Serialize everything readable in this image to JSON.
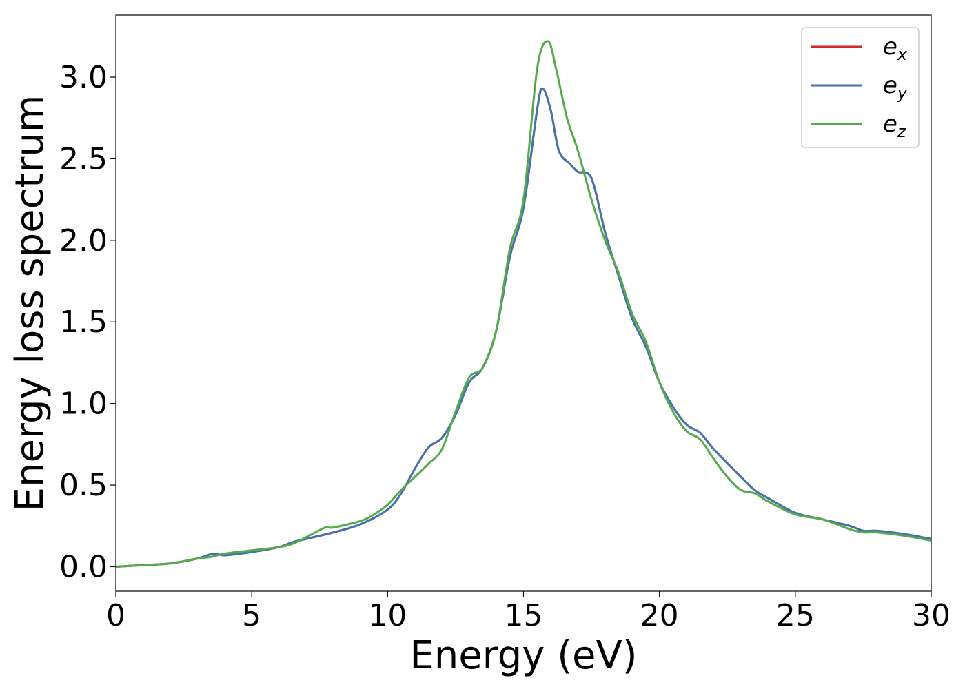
{
  "chart_data": {
    "type": "line",
    "title": "",
    "xlabel": "Energy (eV)",
    "ylabel": "Energy loss spectrum",
    "xlim": [
      0,
      30
    ],
    "ylim": [
      -0.15,
      3.38
    ],
    "xticks": [
      0,
      5,
      10,
      15,
      20,
      25,
      30
    ],
    "xtick_labels": [
      "0",
      "5",
      "10",
      "15",
      "20",
      "25",
      "30"
    ],
    "yticks": [
      0.0,
      0.5,
      1.0,
      1.5,
      2.0,
      2.5,
      3.0
    ],
    "ytick_labels": [
      "0.0",
      "0.5",
      "1.0",
      "1.5",
      "2.0",
      "2.5",
      "3.0"
    ],
    "grid": false,
    "legend": {
      "position": "top-right"
    },
    "series": [
      {
        "name_base": "e",
        "name_sub": "x",
        "color": "#d62728",
        "x": [
          0,
          1,
          2,
          3,
          3.6,
          4,
          5,
          6,
          6.5,
          7,
          8,
          9,
          10,
          10.5,
          11,
          11.5,
          12,
          12.5,
          13,
          13.5,
          14,
          14.5,
          15,
          15.5,
          15.7,
          16,
          16.3,
          16.7,
          17,
          17.5,
          18,
          18.5,
          19,
          19.5,
          20,
          20.5,
          21,
          21.5,
          22,
          23,
          23.5,
          24,
          25,
          26,
          27,
          27.5,
          28,
          29,
          30
        ],
        "y": [
          0.0,
          0.01,
          0.02,
          0.05,
          0.08,
          0.07,
          0.09,
          0.12,
          0.15,
          0.17,
          0.21,
          0.26,
          0.35,
          0.45,
          0.6,
          0.73,
          0.79,
          0.93,
          1.13,
          1.22,
          1.45,
          1.9,
          2.2,
          2.8,
          2.93,
          2.8,
          2.55,
          2.47,
          2.42,
          2.38,
          2.05,
          1.78,
          1.52,
          1.35,
          1.13,
          0.98,
          0.87,
          0.82,
          0.72,
          0.55,
          0.47,
          0.42,
          0.33,
          0.29,
          0.25,
          0.22,
          0.22,
          0.2,
          0.17
        ]
      },
      {
        "name_base": "e",
        "name_sub": "y",
        "color": "#3f74ad",
        "x": [
          0,
          1,
          2,
          3,
          3.6,
          4,
          5,
          6,
          6.5,
          7,
          8,
          9,
          10,
          10.5,
          11,
          11.5,
          12,
          12.5,
          13,
          13.5,
          14,
          14.5,
          15,
          15.5,
          15.7,
          16,
          16.3,
          16.7,
          17,
          17.5,
          18,
          18.5,
          19,
          19.5,
          20,
          20.5,
          21,
          21.5,
          22,
          23,
          23.5,
          24,
          25,
          26,
          27,
          27.5,
          28,
          29,
          30
        ],
        "y": [
          0.0,
          0.01,
          0.02,
          0.05,
          0.08,
          0.07,
          0.09,
          0.12,
          0.15,
          0.17,
          0.21,
          0.26,
          0.35,
          0.45,
          0.6,
          0.73,
          0.79,
          0.93,
          1.13,
          1.22,
          1.45,
          1.9,
          2.2,
          2.8,
          2.93,
          2.8,
          2.55,
          2.47,
          2.42,
          2.38,
          2.05,
          1.78,
          1.52,
          1.35,
          1.13,
          0.98,
          0.87,
          0.82,
          0.72,
          0.55,
          0.47,
          0.42,
          0.33,
          0.29,
          0.25,
          0.22,
          0.22,
          0.2,
          0.17
        ]
      },
      {
        "name_base": "e",
        "name_sub": "z",
        "color": "#55aa4c",
        "x": [
          0,
          1,
          2,
          3,
          3.5,
          4,
          5,
          6,
          6.5,
          7,
          7.7,
          8,
          9,
          9.5,
          10,
          10.5,
          11,
          11.5,
          12,
          12.5,
          13,
          13.5,
          14,
          14.5,
          15,
          15.5,
          15.9,
          16.2,
          16.6,
          17,
          17.5,
          18,
          18.5,
          19,
          19.5,
          20,
          20.5,
          21,
          21.5,
          22,
          22.5,
          23,
          23.5,
          24,
          25,
          26,
          27,
          27.5,
          28,
          29,
          30
        ],
        "y": [
          0.0,
          0.01,
          0.02,
          0.05,
          0.06,
          0.08,
          0.1,
          0.12,
          0.14,
          0.18,
          0.24,
          0.24,
          0.28,
          0.32,
          0.38,
          0.47,
          0.55,
          0.63,
          0.72,
          0.95,
          1.16,
          1.22,
          1.45,
          1.95,
          2.25,
          3.05,
          3.22,
          3.05,
          2.75,
          2.55,
          2.25,
          2.0,
          1.8,
          1.55,
          1.38,
          1.13,
          0.95,
          0.83,
          0.78,
          0.66,
          0.55,
          0.47,
          0.45,
          0.4,
          0.32,
          0.29,
          0.23,
          0.21,
          0.21,
          0.19,
          0.16
        ]
      }
    ]
  }
}
